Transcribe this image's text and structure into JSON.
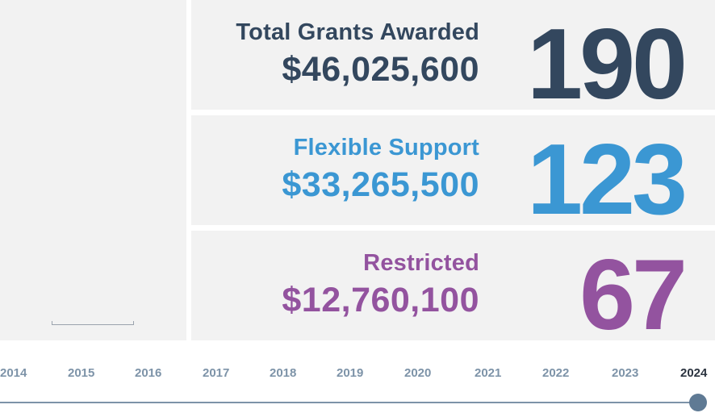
{
  "summary": {
    "total": {
      "label": "Total Grants Awarded",
      "amount": "$46,025,600",
      "count": "190",
      "color": "#33475e"
    },
    "flexible": {
      "label": "Flexible Support",
      "amount": "$33,265,500",
      "count": "123",
      "color": "#3b97d3"
    },
    "restricted": {
      "label": "Restricted",
      "amount": "$12,760,100",
      "count": "67",
      "color": "#93539f"
    }
  },
  "timeline": {
    "years": [
      "2014",
      "2015",
      "2016",
      "2017",
      "2018",
      "2019",
      "2020",
      "2021",
      "2022",
      "2023",
      "2024"
    ],
    "selected": "2024"
  }
}
